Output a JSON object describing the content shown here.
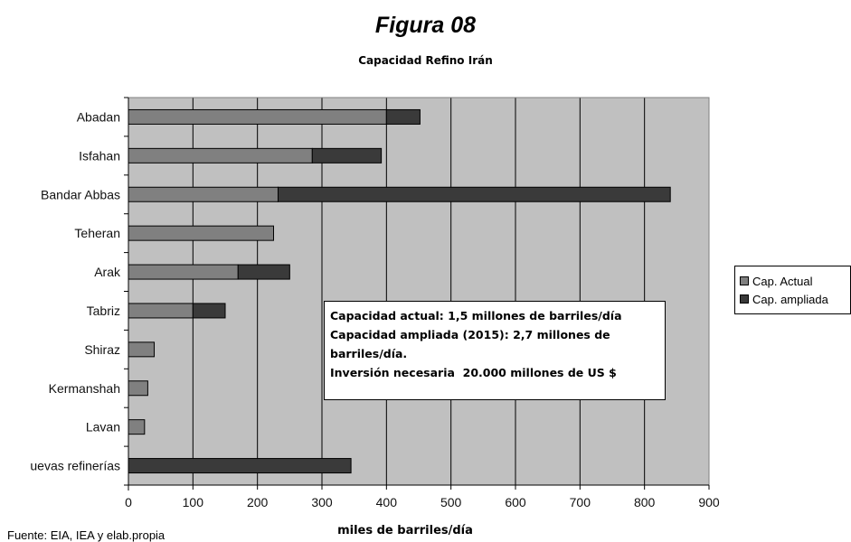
{
  "figure_title": "Figura 08",
  "source_note": "Fuente: EIA, IEA y elab.propia",
  "annotation": {
    "line1": "Capacidad actual: 1,5 millones de barriles/día",
    "line2": "Capacidad ampliada (2015): 2,7 millones de",
    "line3": "barriles/día.",
    "line4": "Inversión necesaria  20.000 millones de US $"
  },
  "legend": {
    "actual": "Cap. Actual",
    "ampliada": "Cap. ampliada"
  },
  "chart_data": {
    "type": "bar",
    "orientation": "horizontal",
    "stacked": true,
    "title": "Capacidad Refino Irán",
    "xlabel": "miles de barriles/día",
    "ylabel": "",
    "xlim": [
      0,
      900
    ],
    "xticks": [
      0,
      100,
      200,
      300,
      400,
      500,
      600,
      700,
      800,
      900
    ],
    "grid": "vertical",
    "legend_position": "right",
    "categories": [
      "Abadan",
      "Isfahan",
      "Bandar Abbas",
      "Teheran",
      "Arak",
      "Tabriz",
      "Shiraz",
      "Kermanshah",
      "Lavan",
      "uevas refinerías"
    ],
    "series": [
      {
        "name": "Cap. Actual",
        "color": "#808080",
        "values": [
          400,
          285,
          232,
          225,
          170,
          100,
          40,
          30,
          25,
          0
        ]
      },
      {
        "name": "Cap. ampliada",
        "color": "#3a3a3a",
        "values": [
          52,
          107,
          608,
          0,
          80,
          50,
          0,
          0,
          0,
          345
        ]
      }
    ],
    "plot_background": "#c0c0c0"
  }
}
